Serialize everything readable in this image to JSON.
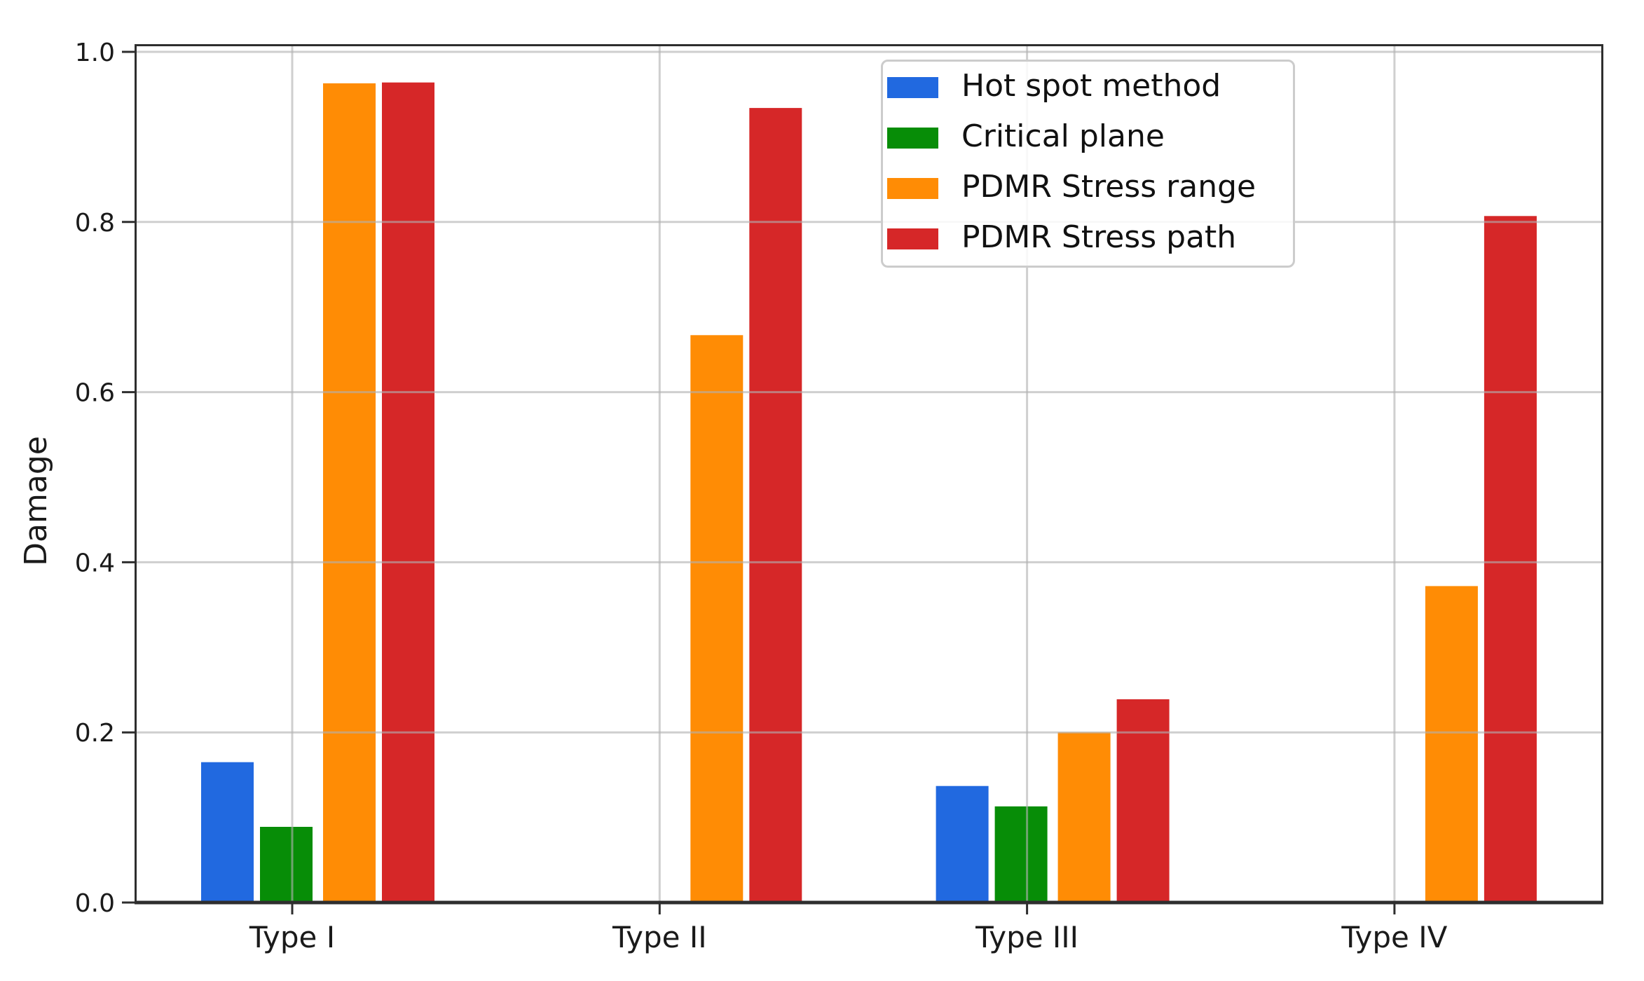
{
  "chart_data": {
    "type": "bar",
    "title": "",
    "xlabel": "",
    "ylabel": "Damage",
    "categories": [
      "Type I",
      "Type II",
      "Type III",
      "Type IV"
    ],
    "series": [
      {
        "name": "Hot spot method",
        "color": "#2169e0",
        "values": [
          0.165,
          0,
          0.137,
          0
        ]
      },
      {
        "name": "Critical plane",
        "color": "#078d07",
        "values": [
          0.089,
          0,
          0.113,
          0
        ]
      },
      {
        "name": "PDMR Stress range",
        "color": "#ff8c05",
        "values": [
          0.963,
          0.667,
          0.2,
          0.372
        ]
      },
      {
        "name": "PDMR Stress path",
        "color": "#d62728",
        "values": [
          0.964,
          0.934,
          0.239,
          0.807
        ]
      }
    ],
    "ylim": [
      0,
      1.01
    ],
    "yticks": [
      "0.0",
      "0.2",
      "0.4",
      "0.6",
      "0.8",
      "1.0"
    ],
    "grid": true,
    "grid_above_bars": true,
    "legend_position": "upper center-right"
  },
  "colors": {
    "background": "#ffffff",
    "grid": "#c8c8c8",
    "spine": "#2e2e2e",
    "tick_text": "#1a1a1a",
    "legend_border": "#cccccc"
  }
}
